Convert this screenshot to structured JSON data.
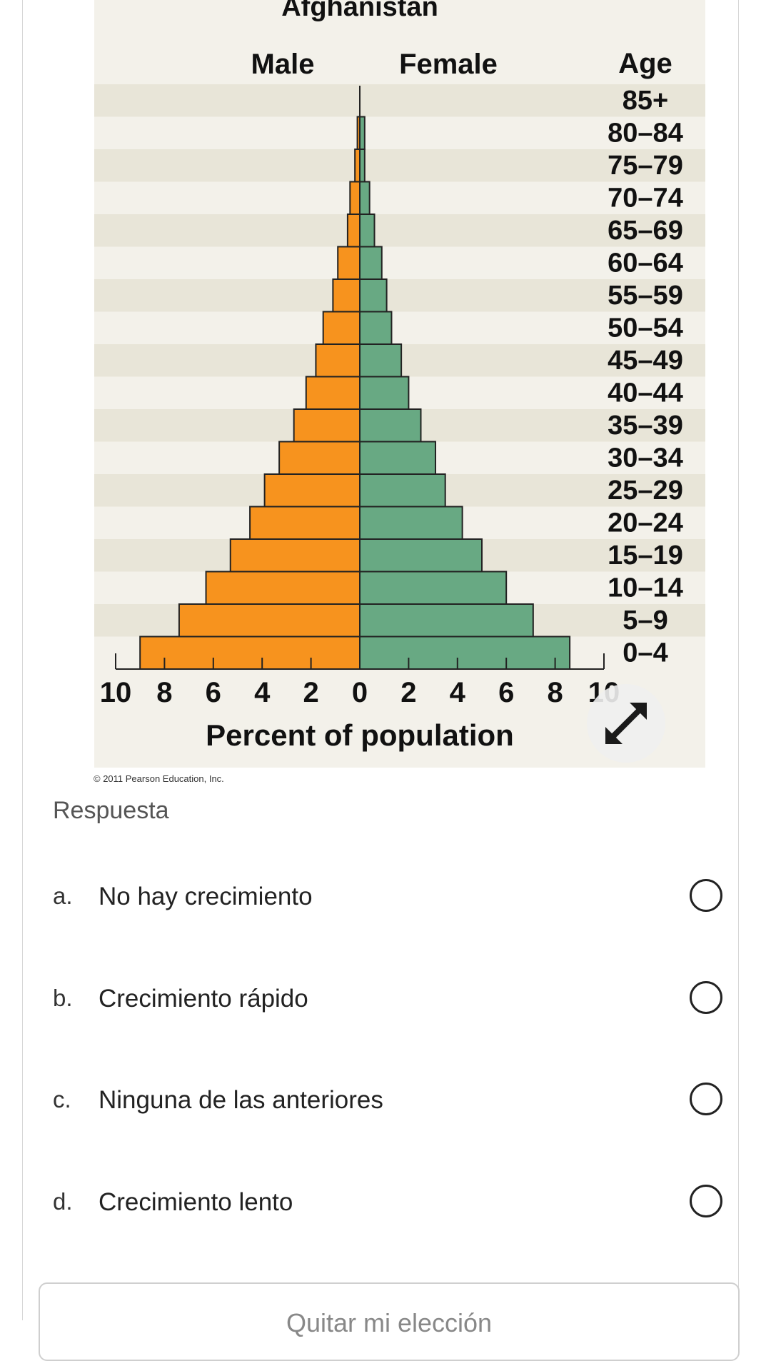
{
  "chart_data": {
    "type": "bar",
    "title": "Afghanistan",
    "left_header": "Male",
    "right_header": "Female",
    "age_header": "Age",
    "xlabel": "Percent of population",
    "xlim": [
      -10,
      10
    ],
    "x_ticks": [
      "10",
      "8",
      "6",
      "4",
      "2",
      "0",
      "2",
      "4",
      "6",
      "8",
      "10"
    ],
    "categories": [
      "85+",
      "80–84",
      "75–79",
      "70–74",
      "65–69",
      "60–64",
      "55–59",
      "50–54",
      "45–49",
      "40–44",
      "35–39",
      "30–34",
      "25–29",
      "20–24",
      "15–19",
      "10–14",
      "5–9",
      "0–4"
    ],
    "series": [
      {
        "name": "Male",
        "values": [
          0.0,
          0.1,
          0.2,
          0.4,
          0.5,
          0.9,
          1.1,
          1.5,
          1.8,
          2.2,
          2.7,
          3.3,
          3.9,
          4.5,
          5.3,
          6.3,
          7.4,
          9.0
        ]
      },
      {
        "name": "Female",
        "values": [
          0.0,
          0.2,
          0.2,
          0.4,
          0.6,
          0.9,
          1.1,
          1.3,
          1.7,
          2.0,
          2.5,
          3.1,
          3.5,
          4.2,
          5.0,
          6.0,
          7.1,
          8.6
        ]
      }
    ],
    "colors": {
      "male": "#f7931e",
      "female": "#68a983",
      "band_dark": "#e8e5d8",
      "band_light": "#f3f1ea"
    }
  },
  "copyright": "© 2011 Pearson Education, Inc.",
  "answer_label": "Respuesta",
  "options": [
    {
      "letter": "a.",
      "text": "No hay crecimiento"
    },
    {
      "letter": "b.",
      "text": "Crecimiento rápido"
    },
    {
      "letter": "c.",
      "text": "Ninguna de las anteriores"
    },
    {
      "letter": "d.",
      "text": "Crecimiento lento"
    }
  ],
  "clear_button": "Quitar mi elección",
  "expand_icon": "expand-arrows-icon"
}
